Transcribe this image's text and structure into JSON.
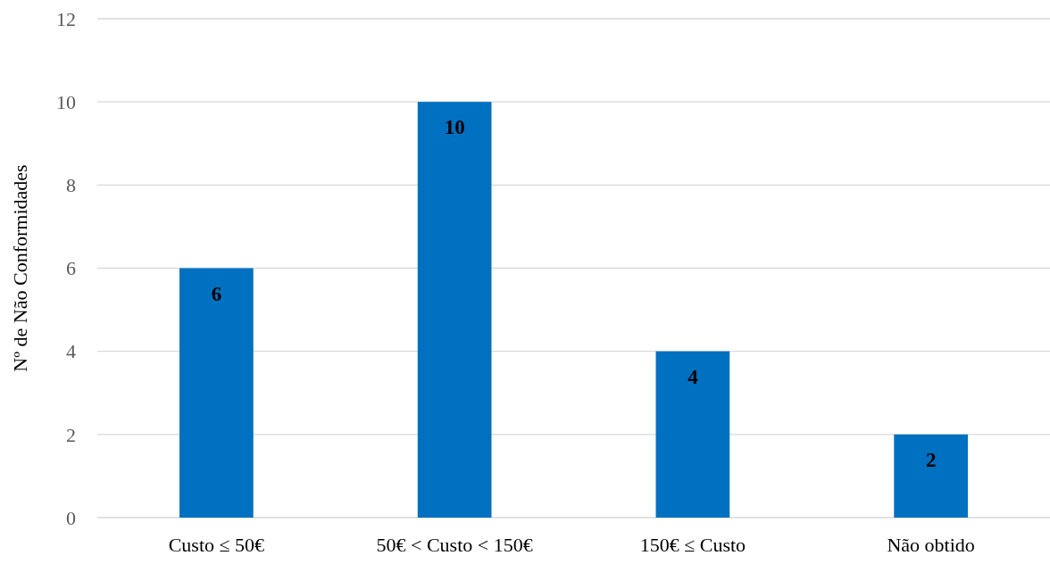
{
  "chart_data": {
    "type": "bar",
    "ylabel": "Nº de Não Conformidades",
    "categories": [
      "Custo ≤ 50€",
      "50€ < Custo < 150€",
      "150€ ≤ Custo",
      "Não obtido"
    ],
    "values": [
      6,
      10,
      4,
      2
    ],
    "color": "#0070c0",
    "ylim": [
      0,
      12
    ],
    "yticks": [
      0,
      2,
      4,
      6,
      8,
      10,
      12
    ],
    "grid": "y",
    "data_labels": true,
    "legend": false
  }
}
